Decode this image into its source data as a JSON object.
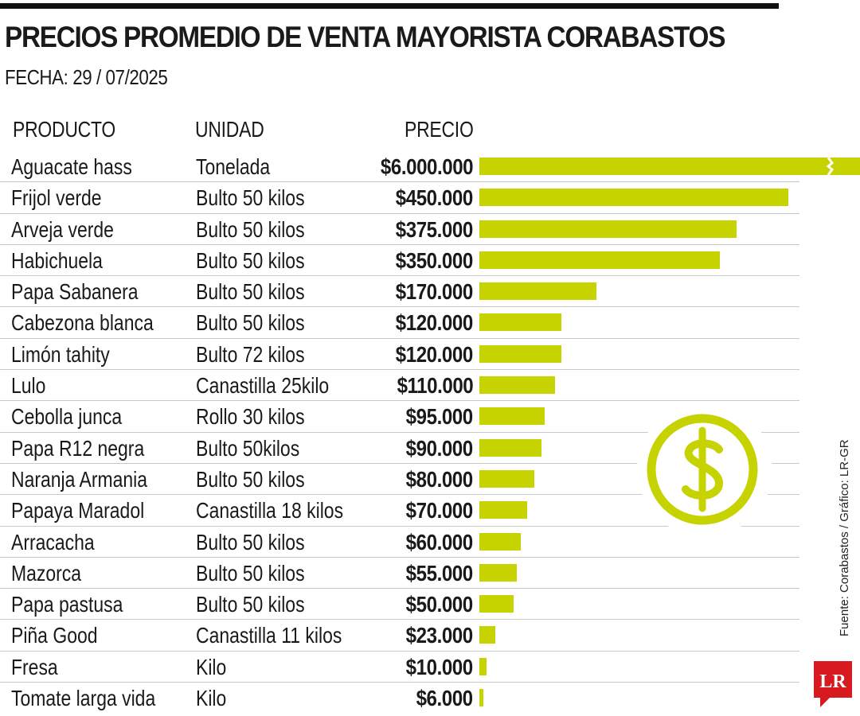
{
  "title": "PRECIOS PROMEDIO DE VENTA MAYORISTA CORABASTOS",
  "date_label": "FECHA: 29 / 07/2025",
  "columns": {
    "product": "PRODUCTO",
    "unit": "UNIDAD",
    "price": "PRECIO"
  },
  "source": "Fuente: Corabastos / Gráfico: LR-GR",
  "logo_text": "LR",
  "colors": {
    "bar": "#c6d300",
    "text": "#1a1a1a",
    "rule": "#111111",
    "logo": "#d71920"
  },
  "icons": {
    "dollar": "dollar-circle-icon",
    "logo": "lr-logo-icon"
  },
  "chart_data": {
    "type": "bar",
    "orientation": "horizontal",
    "title": "PRECIOS PROMEDIO DE VENTA MAYORISTA CORABASTOS",
    "subtitle": "FECHA: 29 / 07/2025",
    "xlabel": "PRECIO",
    "ylabel": "PRODUCTO",
    "axis_break": "Aguacate hass",
    "xlim": [
      0,
      450000
    ],
    "rows": [
      {
        "product": "Aguacate hass",
        "unit": "Tonelada",
        "price_label": "$6.000.000",
        "value": 6000000
      },
      {
        "product": "Frijol verde",
        "unit": "Bulto 50 kilos",
        "price_label": "$450.000",
        "value": 450000
      },
      {
        "product": "Arveja verde",
        "unit": "Bulto 50 kilos",
        "price_label": "$375.000",
        "value": 375000
      },
      {
        "product": "Habichuela",
        "unit": "Bulto 50 kilos",
        "price_label": "$350.000",
        "value": 350000
      },
      {
        "product": "Papa Sabanera",
        "unit": "Bulto 50 kilos",
        "price_label": "$170.000",
        "value": 170000
      },
      {
        "product": "Cabezona blanca",
        "unit": "Bulto 50 kilos",
        "price_label": "$120.000",
        "value": 120000
      },
      {
        "product": "Limón tahity",
        "unit": "Bulto 72 kilos",
        "price_label": "$120.000",
        "value": 120000
      },
      {
        "product": "Lulo",
        "unit": "Canastilla 25kilo",
        "price_label": "$110.000",
        "value": 110000
      },
      {
        "product": "Cebolla junca",
        "unit": "Rollo  30 kilos",
        "price_label": "$95.000",
        "value": 95000
      },
      {
        "product": "Papa R12 negra",
        "unit": "Bulto 50kilos",
        "price_label": "$90.000",
        "value": 90000
      },
      {
        "product": "Naranja Armania",
        "unit": "Bulto 50 kilos",
        "price_label": "$80.000",
        "value": 80000
      },
      {
        "product": "Papaya Maradol",
        "unit": "Canastilla 18  kilos",
        "price_label": "$70.000",
        "value": 70000
      },
      {
        "product": "Arracacha",
        "unit": "Bulto 50 kilos",
        "price_label": "$60.000",
        "value": 60000
      },
      {
        "product": "Mazorca",
        "unit": "Bulto 50 kilos",
        "price_label": "$55.000",
        "value": 55000
      },
      {
        "product": "Papa pastusa",
        "unit": "Bulto 50 kilos",
        "price_label": "$50.000",
        "value": 50000
      },
      {
        "product": "Piña Good",
        "unit": "Canastilla 11 kilos",
        "price_label": "$23.000",
        "value": 23000
      },
      {
        "product": "Fresa",
        "unit": "Kilo",
        "price_label": "$10.000",
        "value": 10000
      },
      {
        "product": "Tomate larga vida",
        "unit": "Kilo",
        "price_label": "$6.000",
        "value": 6000
      }
    ]
  }
}
